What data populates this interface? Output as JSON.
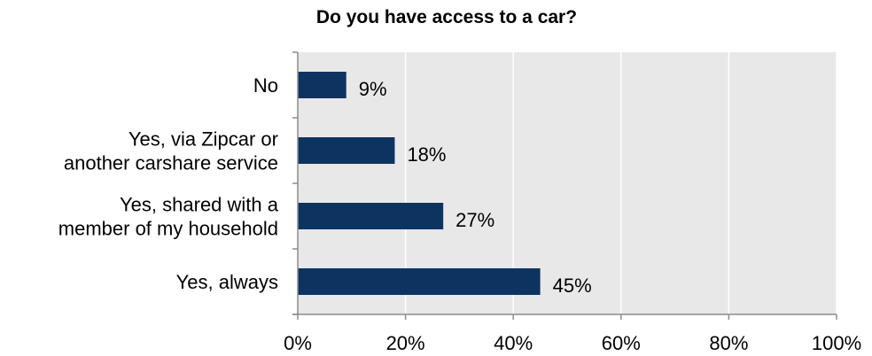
{
  "chart_data": {
    "type": "bar",
    "orientation": "horizontal",
    "title": "Do you have access to a car?",
    "categories": [
      [
        "No"
      ],
      [
        "Yes, via Zipcar or",
        "another carshare service"
      ],
      [
        "Yes, shared with a",
        "member of my household"
      ],
      [
        "Yes, always"
      ]
    ],
    "values": [
      9,
      18,
      27,
      45
    ],
    "data_labels": [
      "9%",
      "18%",
      "27%",
      "45%"
    ],
    "xlim": [
      0,
      100
    ],
    "xticks": [
      0,
      20,
      40,
      60,
      80,
      100
    ],
    "xtick_labels": [
      "0%",
      "20%",
      "40%",
      "60%",
      "80%",
      "100%"
    ],
    "xlabel": "",
    "ylabel": "",
    "grid": true,
    "legend": "none",
    "colors": {
      "bar": "#0d3461",
      "plot_background": "#e8e8e8",
      "gridline": "#ffffff",
      "axis": "#8c8c8c"
    }
  }
}
